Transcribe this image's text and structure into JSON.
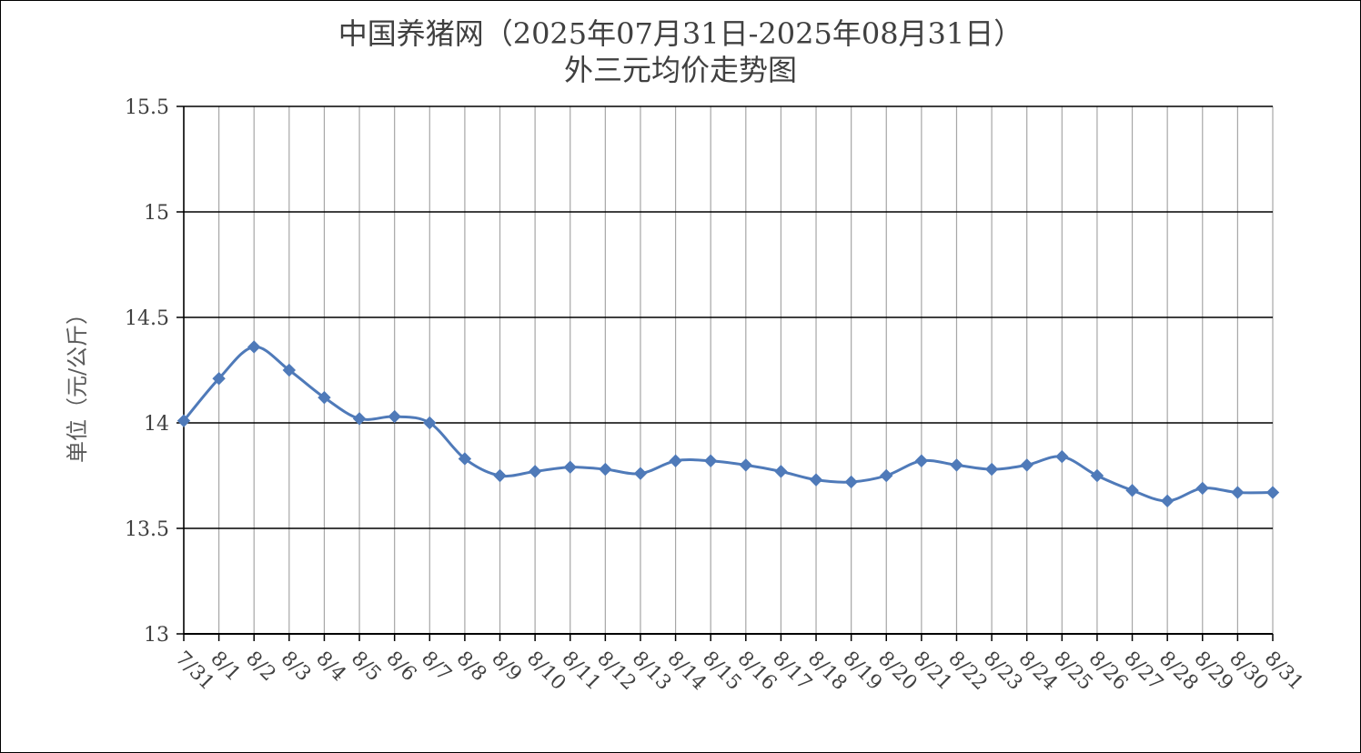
{
  "chart_data": {
    "type": "line",
    "title": "中国养猪网（2025年07月31日-2025年08月31日）",
    "subtitle": "外三元均价走势图",
    "xlabel": "",
    "ylabel": "单位（元/公斤）",
    "ylim": [
      13,
      15.5
    ],
    "yticks": [
      13,
      13.5,
      14,
      14.5,
      15,
      15.5
    ],
    "ytick_labels": [
      "13",
      "13.5",
      "14",
      "14.5",
      "15",
      "15.5"
    ],
    "grid": "on",
    "legend": "none",
    "series_color": "#4f7ab9",
    "categories": [
      "7/31",
      "8/1",
      "8/2",
      "8/3",
      "8/4",
      "8/5",
      "8/6",
      "8/7",
      "8/8",
      "8/9",
      "8/10",
      "8/11",
      "8/12",
      "8/13",
      "8/14",
      "8/15",
      "8/16",
      "8/17",
      "8/18",
      "8/19",
      "8/20",
      "8/21",
      "8/22",
      "8/23",
      "8/24",
      "8/25",
      "8/26",
      "8/27",
      "8/28",
      "8/29",
      "8/30",
      "8/31"
    ],
    "series": [
      {
        "values": [
          14.01,
          14.21,
          14.36,
          14.25,
          14.12,
          14.02,
          14.03,
          14.0,
          13.83,
          13.75,
          13.77,
          13.79,
          13.78,
          13.76,
          13.82,
          13.82,
          13.8,
          13.77,
          13.73,
          13.72,
          13.75,
          13.82,
          13.8,
          13.78,
          13.8,
          13.84,
          13.75,
          13.68,
          13.63,
          13.69,
          13.67,
          13.67
        ]
      }
    ]
  }
}
